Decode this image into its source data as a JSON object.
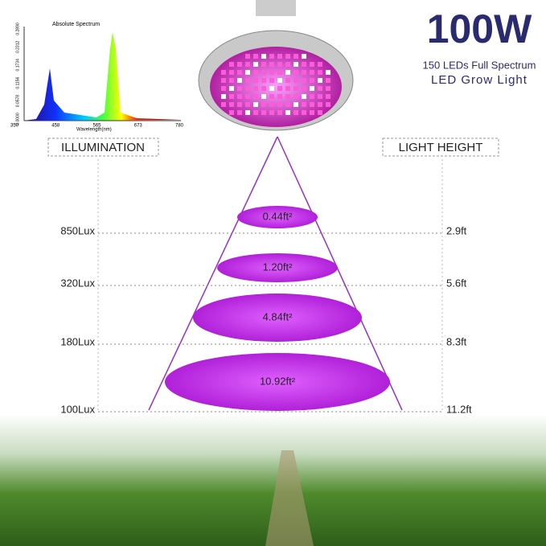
{
  "spectrum": {
    "title": "Absolute Spectrum",
    "x_label": "Wavelength(nm)",
    "x_ticks": [
      "350",
      "458",
      "565",
      "673",
      "780"
    ],
    "y_ticks": [
      "0.0000",
      "0.0578",
      "0.1156",
      "0.1734",
      "0.2312",
      "0.2890"
    ]
  },
  "header": {
    "power": "100W",
    "subtitle": "150 LEDs Full Spectrum",
    "product": "LED Grow Light"
  },
  "left_heading": "ILLUMINATION",
  "right_heading": "LIGHT HEIGHT",
  "rows": [
    {
      "lux": "850Lux",
      "height": "2.9ft",
      "area": "0.44ft²"
    },
    {
      "lux": "320Lux",
      "height": "5.6ft",
      "area": "1.20ft²"
    },
    {
      "lux": "180Lux",
      "height": "8.3ft",
      "area": "4.84ft²"
    },
    {
      "lux": "100Lux",
      "height": "11.2ft",
      "area": "10.92ft²"
    }
  ]
}
